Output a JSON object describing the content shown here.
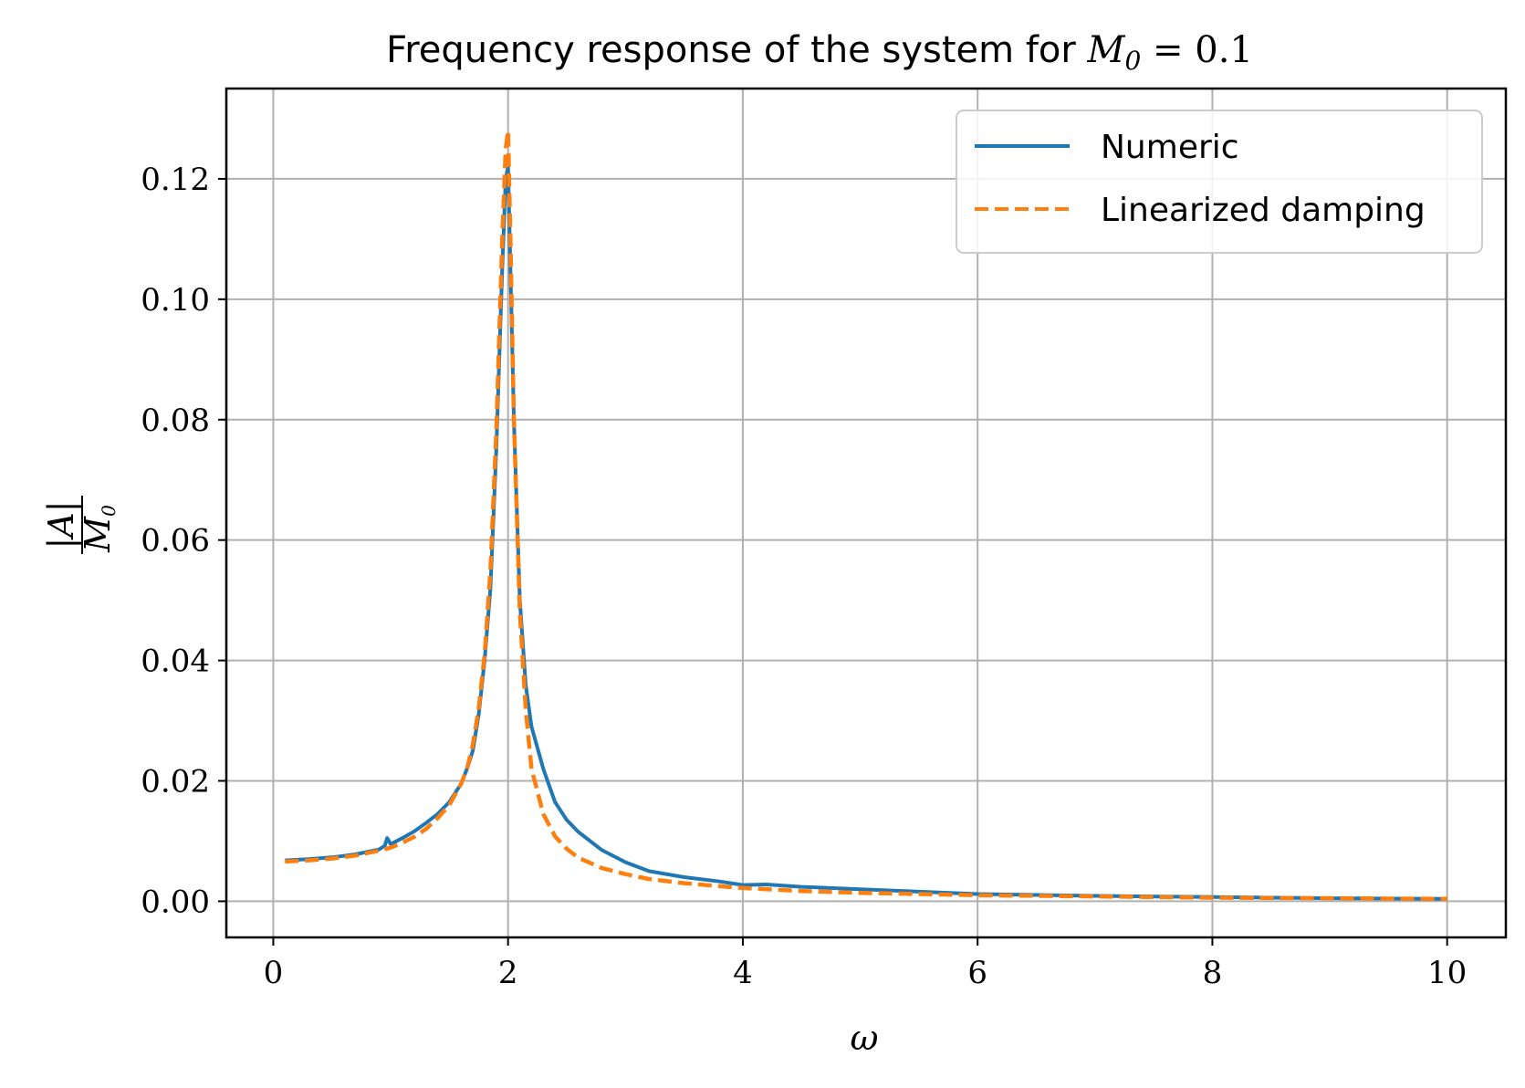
{
  "chart_data": {
    "type": "line",
    "title_prefix": "Frequency response of the system for ",
    "title_math_symbol": "M",
    "title_math_sub": "0",
    "title_math_rest": " = 0.1",
    "xlabel": "ω",
    "ylabel_numerator": "|A|",
    "ylabel_denominator": "M",
    "ylabel_denominator_sub": "0",
    "xlim": [
      -0.4,
      10.5
    ],
    "ylim": [
      -0.006,
      0.135
    ],
    "xticks": [
      0,
      2,
      4,
      6,
      8,
      10
    ],
    "xtick_labels": [
      "0",
      "2",
      "4",
      "6",
      "8",
      "10"
    ],
    "yticks": [
      0.0,
      0.02,
      0.04,
      0.06,
      0.08,
      0.1,
      0.12
    ],
    "ytick_labels": [
      "0.00",
      "0.02",
      "0.04",
      "0.06",
      "0.08",
      "0.10",
      "0.12"
    ],
    "grid": true,
    "legend_position": "top-right",
    "series": [
      {
        "name": "Numeric",
        "color": "#1f77b4",
        "style": "solid",
        "x": [
          0.1,
          0.3,
          0.5,
          0.7,
          0.9,
          0.95,
          0.97,
          1.0,
          1.1,
          1.2,
          1.3,
          1.4,
          1.5,
          1.6,
          1.65,
          1.7,
          1.75,
          1.8,
          1.85,
          1.9,
          1.95,
          1.98,
          2.0,
          2.02,
          2.05,
          2.1,
          2.15,
          2.2,
          2.3,
          2.4,
          2.5,
          2.6,
          2.8,
          3.0,
          3.2,
          3.5,
          3.8,
          4.0,
          4.2,
          4.5,
          5.0,
          5.5,
          6.0,
          7.0,
          8.0,
          9.0,
          10.0
        ],
        "y": [
          0.0068,
          0.007,
          0.0073,
          0.0078,
          0.0086,
          0.0092,
          0.0105,
          0.0095,
          0.0105,
          0.0116,
          0.013,
          0.0145,
          0.0165,
          0.0195,
          0.022,
          0.025,
          0.031,
          0.04,
          0.052,
          0.075,
          0.105,
          0.12,
          0.122,
          0.105,
          0.08,
          0.05,
          0.036,
          0.029,
          0.022,
          0.0165,
          0.0135,
          0.0115,
          0.0085,
          0.0065,
          0.005,
          0.004,
          0.0033,
          0.0027,
          0.0028,
          0.0024,
          0.002,
          0.0016,
          0.0012,
          0.0009,
          0.0007,
          0.0005,
          0.0004
        ]
      },
      {
        "name": "Linearized damping",
        "color": "#ff7f0e",
        "style": "dashed",
        "x": [
          0.1,
          0.3,
          0.5,
          0.7,
          0.9,
          1.0,
          1.1,
          1.2,
          1.3,
          1.4,
          1.5,
          1.6,
          1.65,
          1.7,
          1.75,
          1.8,
          1.85,
          1.9,
          1.95,
          1.98,
          2.0,
          2.02,
          2.05,
          2.1,
          2.15,
          2.2,
          2.3,
          2.4,
          2.5,
          2.6,
          2.8,
          3.0,
          3.2,
          3.5,
          3.8,
          4.0,
          4.5,
          5.0,
          5.5,
          6.0,
          7.0,
          8.0,
          9.0,
          10.0
        ],
        "y": [
          0.0066,
          0.0068,
          0.0071,
          0.0076,
          0.0084,
          0.0089,
          0.0097,
          0.0107,
          0.012,
          0.0138,
          0.016,
          0.0195,
          0.022,
          0.026,
          0.032,
          0.041,
          0.055,
          0.078,
          0.11,
          0.125,
          0.128,
          0.11,
          0.08,
          0.048,
          0.032,
          0.022,
          0.0145,
          0.0108,
          0.0087,
          0.0072,
          0.0055,
          0.0045,
          0.0037,
          0.003,
          0.0025,
          0.0022,
          0.0017,
          0.0014,
          0.0012,
          0.001,
          0.0008,
          0.0006,
          0.0005,
          0.0004
        ]
      }
    ]
  }
}
